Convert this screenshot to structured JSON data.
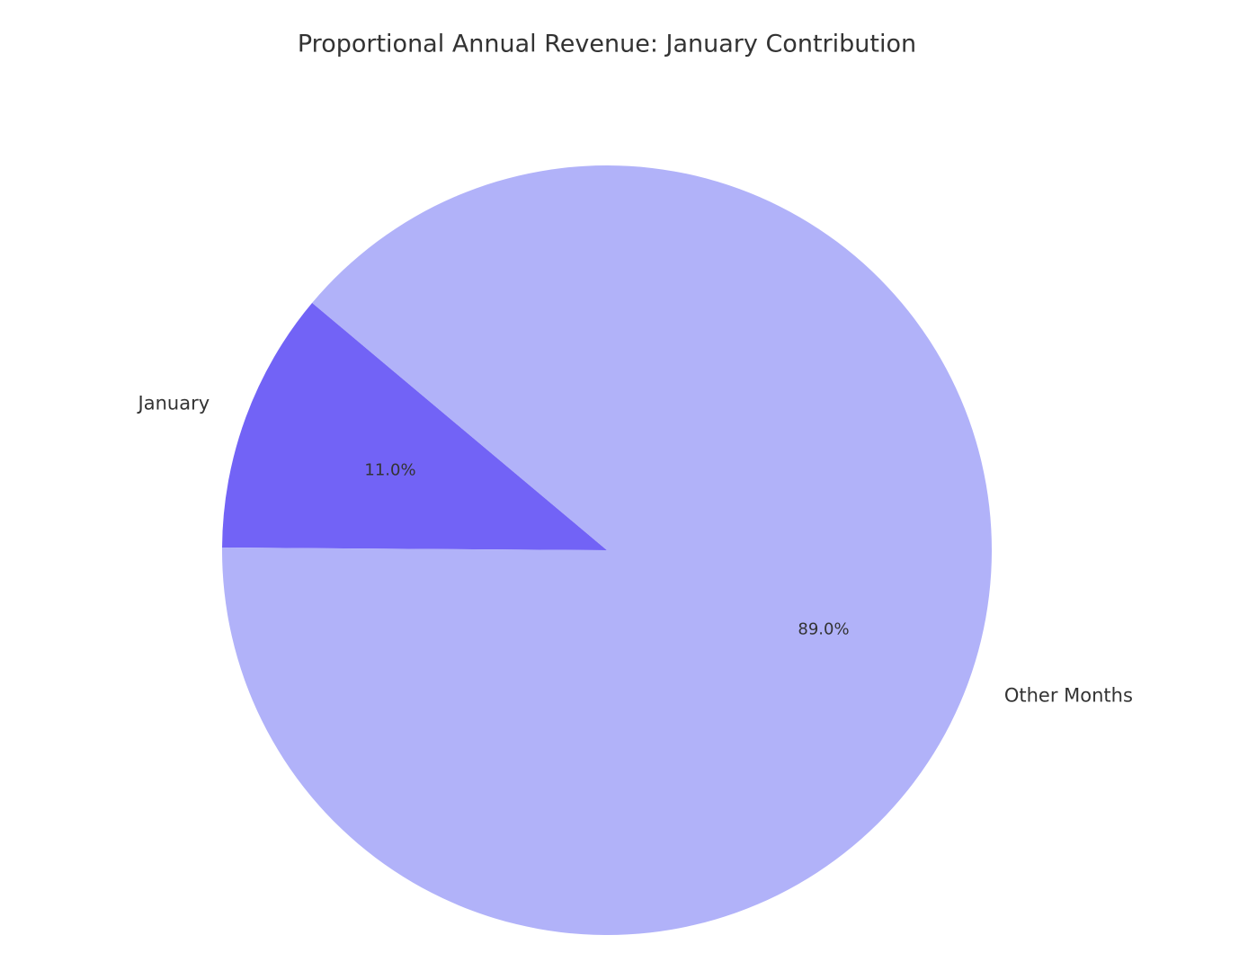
{
  "chart_data": {
    "type": "pie",
    "title": "Proportional Annual Revenue: January Contribution",
    "categories": [
      "January",
      "Other Months"
    ],
    "values": [
      11,
      89
    ],
    "value_labels": [
      "11.0%",
      "89.0%"
    ],
    "colors": [
      "#7263f6",
      "#b1b2f9"
    ],
    "start_angle": 140
  }
}
